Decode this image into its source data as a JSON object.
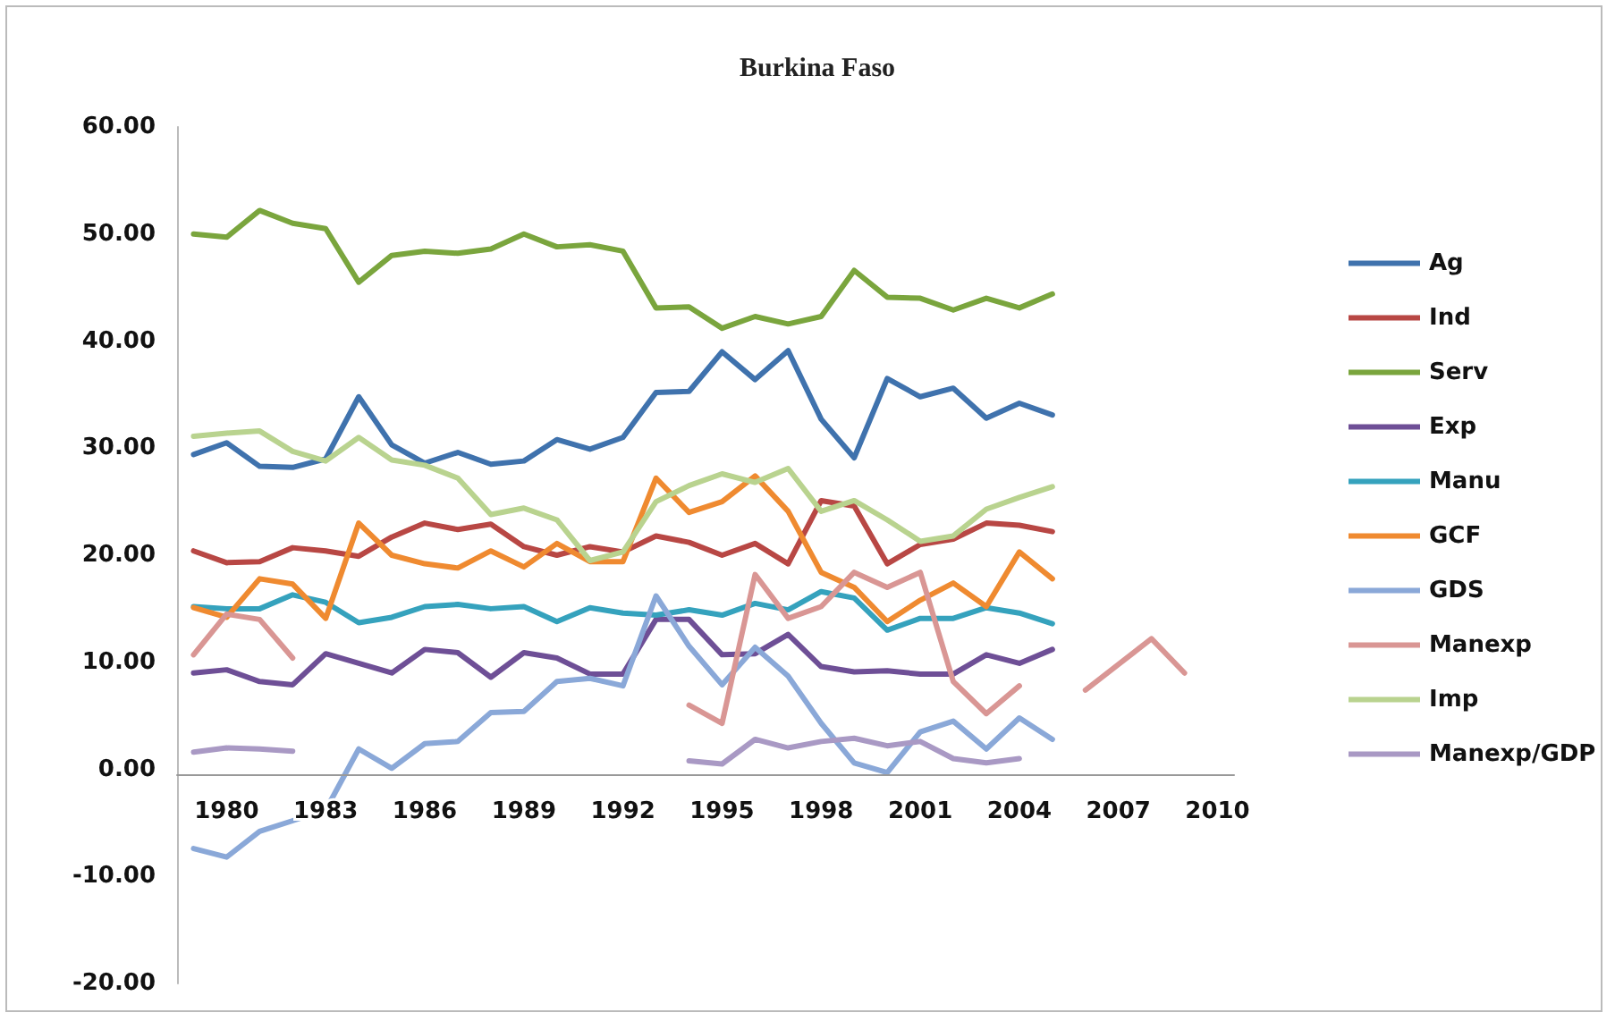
{
  "chart_data": {
    "type": "line",
    "title": "Burkina Faso",
    "categories": [
      null,
      "1980",
      null,
      null,
      "1983",
      null,
      null,
      "1986",
      null,
      null,
      "1989",
      null,
      null,
      "1992",
      null,
      null,
      "1995",
      null,
      null,
      "1998",
      null,
      null,
      "2001",
      null,
      null,
      "2004",
      null,
      null,
      "2007",
      null,
      null,
      "2010"
    ],
    "ylim": [
      -20,
      60
    ],
    "yticks": [
      {
        "value": -20,
        "label": "-20.00"
      },
      {
        "value": -10,
        "label": "-10.00"
      },
      {
        "value": 0,
        "label": "0.00"
      },
      {
        "value": 10,
        "label": "10.00"
      },
      {
        "value": 20,
        "label": "20.00"
      },
      {
        "value": 30,
        "label": "30.00"
      },
      {
        "value": 40,
        "label": "40.00"
      },
      {
        "value": 50,
        "label": "50.00"
      },
      {
        "value": 60,
        "label": "60.00"
      }
    ],
    "grid": false,
    "legend": "right",
    "marker": "none",
    "line_style": "solid",
    "series": [
      {
        "name": "Ag",
        "color": "#3f72ad",
        "values": [
          29.4,
          30.5,
          28.3,
          28.2,
          29.0,
          34.8,
          30.3,
          28.6,
          29.6,
          28.5,
          28.8,
          30.8,
          29.9,
          31.0,
          35.2,
          35.3,
          39.0,
          36.4,
          39.1,
          32.7,
          29.1,
          36.5,
          34.8,
          35.6,
          32.8,
          34.2,
          33.1,
          null,
          null,
          null,
          null,
          null
        ]
      },
      {
        "name": "Ind",
        "color": "#b84744",
        "values": [
          20.4,
          19.3,
          19.4,
          20.7,
          20.4,
          19.9,
          21.7,
          23.0,
          22.4,
          22.9,
          20.8,
          20.0,
          20.8,
          20.3,
          21.8,
          21.2,
          20.0,
          21.1,
          19.2,
          25.1,
          24.6,
          19.2,
          21.0,
          21.5,
          23.0,
          22.8,
          22.2,
          null,
          null,
          null,
          null,
          null
        ]
      },
      {
        "name": "Serv",
        "color": "#7aa53d",
        "values": [
          50.0,
          49.7,
          52.2,
          51.0,
          50.5,
          45.5,
          48.0,
          48.4,
          48.2,
          48.6,
          50.0,
          48.8,
          49.0,
          48.4,
          43.1,
          43.2,
          41.2,
          42.3,
          41.6,
          42.3,
          46.6,
          44.1,
          44.0,
          42.9,
          44.0,
          43.1,
          44.4,
          null,
          null,
          null,
          null,
          null
        ]
      },
      {
        "name": "Exp",
        "color": "#6e4f96",
        "values": [
          9.0,
          9.3,
          8.2,
          7.9,
          10.8,
          9.9,
          9.0,
          11.2,
          10.9,
          8.6,
          10.9,
          10.4,
          8.9,
          8.9,
          14.0,
          14.0,
          10.7,
          10.8,
          12.6,
          9.6,
          9.1,
          9.2,
          8.9,
          8.9,
          10.7,
          9.9,
          11.2,
          null,
          null,
          null,
          null,
          null
        ]
      },
      {
        "name": "Manu",
        "color": "#35a2bd",
        "values": [
          15.2,
          15.0,
          15.0,
          16.3,
          15.6,
          13.7,
          14.2,
          15.2,
          15.4,
          15.0,
          15.2,
          13.8,
          15.1,
          14.6,
          14.4,
          14.9,
          14.4,
          15.5,
          14.9,
          16.6,
          16.0,
          13.0,
          14.1,
          14.1,
          15.1,
          14.6,
          13.6,
          null,
          null,
          null,
          null,
          null
        ]
      },
      {
        "name": "GCF",
        "color": "#ef8a30",
        "values": [
          15.1,
          14.2,
          17.8,
          17.3,
          14.1,
          23.0,
          20.0,
          19.2,
          18.8,
          20.4,
          18.9,
          21.1,
          19.4,
          19.4,
          27.2,
          24.0,
          25.0,
          27.4,
          24.1,
          18.4,
          17.0,
          13.8,
          15.8,
          17.4,
          15.2,
          20.3,
          17.8,
          null,
          null,
          null,
          null,
          null
        ]
      },
      {
        "name": "GDS",
        "color": "#8aa8d8",
        "values": [
          -7.4,
          -8.2,
          -5.8,
          -4.8,
          -3.8,
          1.9,
          0.1,
          2.4,
          2.6,
          5.3,
          5.4,
          8.2,
          8.5,
          7.8,
          16.2,
          11.5,
          7.9,
          11.4,
          8.7,
          4.3,
          0.6,
          -0.3,
          3.5,
          4.5,
          1.9,
          4.8,
          2.8,
          null,
          null,
          null,
          null,
          null
        ]
      },
      {
        "name": "Manexp",
        "color": "#d99694",
        "values": [
          10.7,
          14.5,
          14.0,
          10.4,
          null,
          null,
          null,
          null,
          null,
          null,
          null,
          null,
          null,
          null,
          null,
          6.0,
          4.3,
          18.2,
          14.1,
          15.2,
          18.4,
          17.0,
          18.4,
          8.2,
          5.2,
          7.8,
          null,
          7.4,
          9.8,
          12.2,
          9.0,
          null
        ]
      },
      {
        "name": "Imp",
        "color": "#b9d38f",
        "values": [
          31.1,
          31.4,
          31.6,
          29.7,
          28.8,
          31.0,
          28.9,
          28.4,
          27.2,
          23.8,
          24.4,
          23.3,
          19.5,
          20.3,
          25.0,
          26.5,
          27.6,
          26.8,
          28.1,
          24.1,
          25.1,
          23.3,
          21.3,
          21.8,
          24.3,
          25.4,
          26.4,
          null,
          null,
          null,
          null,
          null
        ]
      },
      {
        "name": "Manexp/GDP",
        "color": "#a999c4",
        "values": [
          1.6,
          2.0,
          1.9,
          1.7,
          null,
          null,
          null,
          null,
          null,
          null,
          null,
          null,
          null,
          null,
          null,
          0.8,
          0.5,
          2.8,
          2.0,
          2.6,
          2.9,
          2.2,
          2.6,
          1.0,
          0.6,
          1.0,
          null,
          null,
          null,
          null,
          null,
          null
        ]
      }
    ]
  }
}
